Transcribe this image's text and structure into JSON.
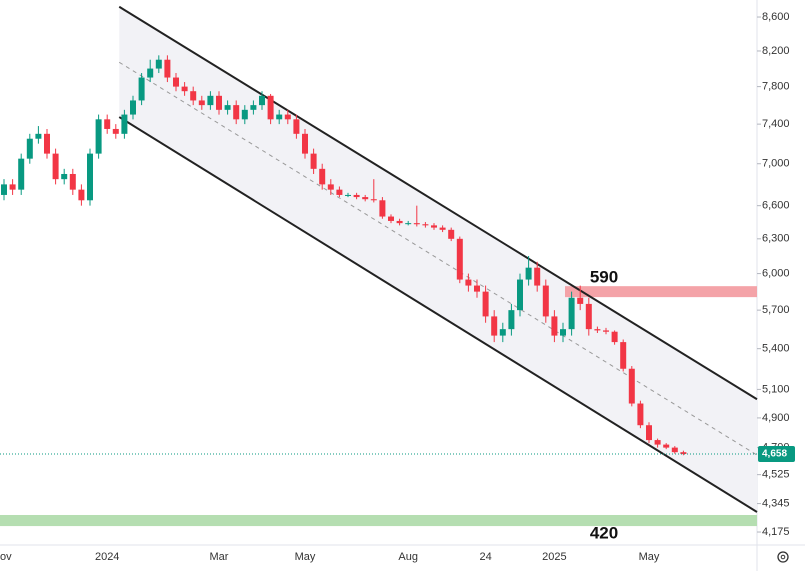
{
  "chart_data": {
    "type": "candlestick",
    "categories": [
      "ov",
      null,
      null,
      null,
      null,
      null,
      null,
      null,
      null,
      null,
      null,
      null,
      "2024",
      null,
      null,
      null,
      null,
      null,
      null,
      null,
      null,
      null,
      null,
      null,
      null,
      "Mar",
      null,
      null,
      null,
      null,
      null,
      null,
      null,
      null,
      null,
      "May",
      null,
      null,
      null,
      null,
      null,
      null,
      null,
      null,
      null,
      null,
      null,
      "Aug",
      null,
      null,
      null,
      null,
      null,
      null,
      null,
      null,
      "24",
      null,
      null,
      null,
      null,
      null,
      null,
      null,
      "2025",
      null,
      null,
      null,
      null,
      null,
      null,
      null,
      null,
      null,
      null,
      "May",
      null,
      null,
      null,
      null
    ],
    "open": [
      6700,
      6800,
      6750,
      7050,
      7250,
      7300,
      7100,
      6850,
      6900,
      6750,
      6650,
      7100,
      7450,
      7350,
      7300,
      7500,
      7650,
      7900,
      8000,
      8100,
      7900,
      7800,
      7750,
      7650,
      7600,
      7700,
      7550,
      7600,
      7450,
      7550,
      7600,
      7700,
      7450,
      7500,
      7450,
      7300,
      7100,
      6950,
      6800,
      6750,
      6700,
      6700,
      6680,
      6660,
      6650,
      6500,
      6460,
      6440,
      6440,
      6430,
      6420,
      6400,
      6380,
      6300,
      5950,
      5900,
      5850,
      5650,
      5500,
      5550,
      5700,
      5950,
      6050,
      5900,
      5650,
      5500,
      5550,
      5800,
      5750,
      5550,
      5540,
      5530,
      5450,
      5250,
      5000,
      4850,
      4750,
      4720,
      4700,
      4670
    ],
    "high": [
      6850,
      6850,
      7100,
      7300,
      7380,
      7350,
      7150,
      6950,
      6950,
      6800,
      7150,
      7500,
      7500,
      7400,
      7550,
      7700,
      7950,
      8100,
      8150,
      8150,
      7950,
      7850,
      7800,
      7700,
      7750,
      7750,
      7650,
      7650,
      7600,
      7650,
      7750,
      7720,
      7550,
      7550,
      7500,
      7350,
      7150,
      7000,
      6850,
      6780,
      6720,
      6720,
      6700,
      6850,
      6680,
      6520,
      6480,
      6460,
      6600,
      6450,
      6440,
      6420,
      6400,
      6320,
      6000,
      5950,
      5900,
      5700,
      5600,
      5750,
      6000,
      6150,
      6100,
      5950,
      5700,
      5600,
      5850,
      5900,
      5800,
      5570,
      5560,
      5540,
      5470,
      5270,
      5020,
      4870,
      4760,
      4730,
      4710,
      4680
    ],
    "low": [
      6650,
      6700,
      6700,
      7000,
      7200,
      7050,
      6800,
      6800,
      6700,
      6600,
      6600,
      7050,
      7300,
      7250,
      7250,
      7450,
      7600,
      7850,
      7950,
      7850,
      7750,
      7700,
      7600,
      7550,
      7550,
      7500,
      7500,
      7400,
      7400,
      7500,
      7550,
      7400,
      7400,
      7400,
      7250,
      7050,
      6900,
      6750,
      6700,
      6680,
      6680,
      6660,
      6640,
      6630,
      6480,
      6440,
      6420,
      6420,
      6410,
      6400,
      6380,
      6360,
      6280,
      5920,
      5850,
      5800,
      5600,
      5450,
      5450,
      5500,
      5650,
      5900,
      5850,
      5600,
      5450,
      5450,
      5500,
      5700,
      5500,
      5520,
      5510,
      5430,
      5230,
      4980,
      4830,
      4730,
      4700,
      4690,
      4660,
      4650
    ],
    "close": [
      6800,
      6750,
      7050,
      7250,
      7300,
      7100,
      6850,
      6900,
      6750,
      6650,
      7100,
      7450,
      7350,
      7300,
      7500,
      7650,
      7900,
      8000,
      8100,
      7900,
      7800,
      7750,
      7650,
      7600,
      7700,
      7550,
      7600,
      7450,
      7550,
      7600,
      7700,
      7450,
      7500,
      7450,
      7300,
      7100,
      6950,
      6800,
      6750,
      6700,
      6700,
      6680,
      6660,
      6650,
      6500,
      6460,
      6440,
      6440,
      6430,
      6420,
      6400,
      6380,
      6300,
      5950,
      5900,
      5850,
      5650,
      5500,
      5550,
      5700,
      5950,
      6050,
      5900,
      5650,
      5500,
      5550,
      5800,
      5750,
      5550,
      5540,
      5530,
      5450,
      5250,
      5000,
      4850,
      4750,
      4720,
      4700,
      4670,
      4658
    ],
    "up_color": "#089981",
    "down_color": "#f23645",
    "ylim": [
      4071,
      8808
    ],
    "log_scale": true,
    "yticks": [
      {
        "value": 4175,
        "label": "4,175"
      },
      {
        "value": 4345,
        "label": "4,345"
      },
      {
        "value": 4525,
        "label": "4,525"
      },
      {
        "value": 4700,
        "label": "4,700"
      },
      {
        "value": 4900,
        "label": "4,900"
      },
      {
        "value": 5100,
        "label": "5,100"
      },
      {
        "value": 5400,
        "label": "5,400"
      },
      {
        "value": 5700,
        "label": "5,700"
      },
      {
        "value": 6000,
        "label": "6,000"
      },
      {
        "value": 6300,
        "label": "6,300"
      },
      {
        "value": 6600,
        "label": "6,600"
      },
      {
        "value": 7000,
        "label": "7,000"
      },
      {
        "value": 7400,
        "label": "7,400"
      },
      {
        "value": 7800,
        "label": "7,800"
      },
      {
        "value": 8200,
        "label": "8,200"
      },
      {
        "value": 8600,
        "label": "8,600"
      }
    ],
    "last_price": {
      "value": 4658,
      "label": "4,658"
    },
    "channel": {
      "upper": [
        8725,
        5030
      ],
      "middle": [
        8071,
        4651
      ],
      "lower": [
        7474,
        4294
      ]
    },
    "zones": [
      {
        "label": "590",
        "low": 5805,
        "high": 5895,
        "color": "#f4a3a8"
      },
      {
        "label": "420",
        "low": 4210,
        "high": 4276,
        "color": "#b5deb1"
      }
    ]
  }
}
